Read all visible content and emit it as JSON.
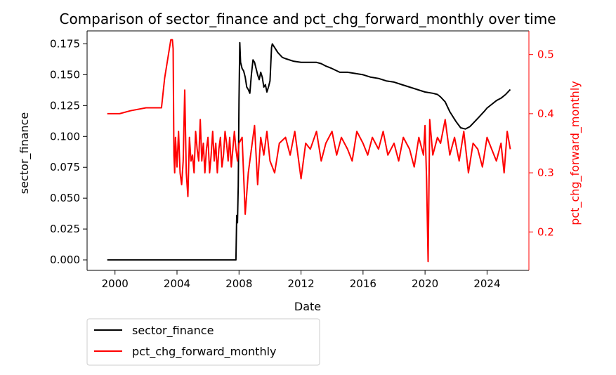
{
  "chart_data": {
    "type": "line",
    "title": "Comparison of sector_finance and pct_chg_forward_monthly over time",
    "xlabel": "Date",
    "ylabel_left": "sector_finance",
    "ylabel_right": "pct_chg_forward_monthly",
    "x_ticks": [
      "2000",
      "2004",
      "2008",
      "2012",
      "2016",
      "2020",
      "2024"
    ],
    "x_range": [
      1998.2,
      2026.7
    ],
    "y_left_ticks": [
      "0.000",
      "0.025",
      "0.050",
      "0.075",
      "0.100",
      "0.125",
      "0.150",
      "0.175"
    ],
    "y_left_range": [
      -0.0085,
      0.1855
    ],
    "y_right_ticks": [
      "0.2",
      "0.3",
      "0.4",
      "0.5"
    ],
    "y_right_range": [
      0.135,
      0.54
    ],
    "grid": false,
    "legend_position": "bottom-left (below plot)",
    "colors": {
      "sector_finance": "#000000",
      "pct_chg_forward_monthly": "#ff0000",
      "right_axis": "#ff0000"
    },
    "series": [
      {
        "name": "sector_finance",
        "axis": "left",
        "x": [
          1999.5,
          2000,
          2002,
          2004,
          2006,
          2007.8,
          2007.85,
          2007.9,
          2007.95,
          2008.0,
          2008.05,
          2008.1,
          2008.2,
          2008.3,
          2008.4,
          2008.5,
          2008.6,
          2008.7,
          2008.8,
          2008.9,
          2009.0,
          2009.1,
          2009.2,
          2009.3,
          2009.4,
          2009.5,
          2009.6,
          2009.7,
          2009.8,
          2009.9,
          2010.0,
          2010.1,
          2010.15,
          2010.3,
          2010.5,
          2010.8,
          2011.0,
          2011.5,
          2012.0,
          2012.5,
          2013.0,
          2013.3,
          2013.6,
          2014.0,
          2014.5,
          2015.0,
          2015.5,
          2016.0,
          2016.5,
          2017.0,
          2017.5,
          2018.0,
          2018.5,
          2019.0,
          2019.5,
          2020.0,
          2020.5,
          2020.8,
          2021.0,
          2021.3,
          2021.6,
          2022.0,
          2022.3,
          2022.6,
          2022.9,
          2023.2,
          2023.5,
          2023.8,
          2024.0,
          2024.3,
          2024.6,
          2024.9,
          2025.2,
          2025.5
        ],
        "values": [
          0.0,
          0.0,
          0.0,
          0.0,
          0.0,
          0.0,
          0.036,
          0.03,
          0.06,
          0.13,
          0.176,
          0.16,
          0.155,
          0.153,
          0.148,
          0.14,
          0.138,
          0.135,
          0.15,
          0.162,
          0.16,
          0.155,
          0.15,
          0.146,
          0.152,
          0.148,
          0.14,
          0.142,
          0.136,
          0.14,
          0.145,
          0.172,
          0.175,
          0.172,
          0.168,
          0.164,
          0.163,
          0.161,
          0.16,
          0.16,
          0.16,
          0.159,
          0.157,
          0.155,
          0.152,
          0.152,
          0.151,
          0.15,
          0.148,
          0.147,
          0.145,
          0.144,
          0.142,
          0.14,
          0.138,
          0.136,
          0.135,
          0.134,
          0.132,
          0.128,
          0.12,
          0.112,
          0.107,
          0.106,
          0.108,
          0.112,
          0.116,
          0.12,
          0.123,
          0.126,
          0.129,
          0.131,
          0.134,
          0.138
        ]
      },
      {
        "name": "pct_chg_forward_monthly",
        "axis": "right",
        "x": [
          1999.5,
          2000.3,
          2001.0,
          2002.0,
          2003.0,
          2003.2,
          2003.6,
          2003.7,
          2003.75,
          2003.8,
          2003.85,
          2003.9,
          2004.0,
          2004.1,
          2004.2,
          2004.3,
          2004.4,
          2004.5,
          2004.6,
          2004.7,
          2004.8,
          2004.9,
          2005.0,
          2005.1,
          2005.2,
          2005.3,
          2005.4,
          2005.5,
          2005.6,
          2005.7,
          2005.8,
          2005.9,
          2006.0,
          2006.1,
          2006.2,
          2006.3,
          2006.4,
          2006.5,
          2006.6,
          2006.7,
          2006.8,
          2006.9,
          2007.0,
          2007.1,
          2007.2,
          2007.3,
          2007.4,
          2007.5,
          2007.6,
          2007.7,
          2007.8,
          2007.9,
          2008.0,
          2008.2,
          2008.4,
          2008.6,
          2008.8,
          2009.0,
          2009.2,
          2009.4,
          2009.6,
          2009.8,
          2010.0,
          2010.3,
          2010.6,
          2011.0,
          2011.3,
          2011.6,
          2012.0,
          2012.3,
          2012.6,
          2013.0,
          2013.3,
          2013.6,
          2014.0,
          2014.3,
          2014.6,
          2015.0,
          2015.3,
          2015.6,
          2016.0,
          2016.3,
          2016.6,
          2017.0,
          2017.3,
          2017.6,
          2018.0,
          2018.3,
          2018.6,
          2019.0,
          2019.3,
          2019.6,
          2019.9,
          2020.0,
          2020.1,
          2020.2,
          2020.3,
          2020.5,
          2020.8,
          2021.0,
          2021.3,
          2021.6,
          2021.9,
          2022.2,
          2022.5,
          2022.8,
          2023.1,
          2023.4,
          2023.7,
          2024.0,
          2024.3,
          2024.6,
          2024.9,
          2025.1,
          2025.3,
          2025.5
        ],
        "values": [
          0.4,
          0.4,
          0.405,
          0.41,
          0.41,
          0.46,
          0.525,
          0.525,
          0.51,
          0.33,
          0.3,
          0.36,
          0.31,
          0.37,
          0.3,
          0.28,
          0.32,
          0.44,
          0.3,
          0.26,
          0.36,
          0.32,
          0.33,
          0.3,
          0.37,
          0.34,
          0.32,
          0.39,
          0.32,
          0.35,
          0.3,
          0.34,
          0.36,
          0.3,
          0.33,
          0.37,
          0.32,
          0.35,
          0.3,
          0.34,
          0.36,
          0.31,
          0.33,
          0.37,
          0.35,
          0.32,
          0.36,
          0.31,
          0.34,
          0.37,
          0.34,
          0.32,
          0.35,
          0.36,
          0.23,
          0.3,
          0.34,
          0.38,
          0.28,
          0.36,
          0.33,
          0.37,
          0.32,
          0.3,
          0.35,
          0.36,
          0.33,
          0.37,
          0.29,
          0.35,
          0.34,
          0.37,
          0.32,
          0.35,
          0.37,
          0.33,
          0.36,
          0.34,
          0.32,
          0.37,
          0.35,
          0.33,
          0.36,
          0.34,
          0.37,
          0.33,
          0.35,
          0.32,
          0.36,
          0.34,
          0.31,
          0.36,
          0.33,
          0.38,
          0.29,
          0.15,
          0.39,
          0.33,
          0.36,
          0.35,
          0.39,
          0.33,
          0.36,
          0.32,
          0.37,
          0.3,
          0.35,
          0.34,
          0.31,
          0.36,
          0.34,
          0.32,
          0.35,
          0.3,
          0.37,
          0.34
        ]
      }
    ]
  }
}
